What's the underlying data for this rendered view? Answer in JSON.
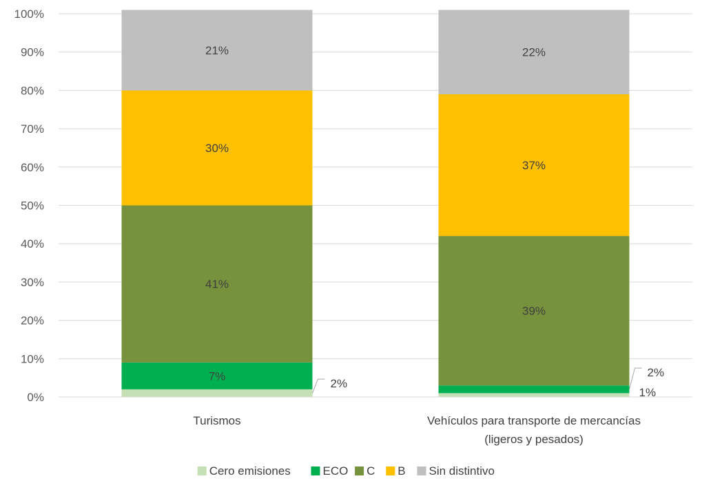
{
  "chart_data": {
    "type": "bar",
    "stacked": true,
    "percent_stacked": true,
    "title": "",
    "xlabel": "",
    "ylabel": "",
    "ylim": [
      0,
      100
    ],
    "yticks": [
      "0%",
      "10%",
      "20%",
      "30%",
      "40%",
      "50%",
      "60%",
      "70%",
      "80%",
      "90%",
      "100%"
    ],
    "grid": true,
    "legend": "bottom",
    "categories": [
      [
        "Turismos"
      ],
      [
        "Vehículos para transporte de mercancías",
        "(ligeros y pesados)"
      ]
    ],
    "series": [
      {
        "name": "Cero emisiones",
        "color": "#c5e0b4",
        "values": [
          2,
          1
        ],
        "labels": [
          "2%",
          "1%"
        ]
      },
      {
        "name": "ECO",
        "color": "#00b050",
        "values": [
          7,
          2
        ],
        "labels": [
          "7%",
          "2%"
        ]
      },
      {
        "name": "C",
        "color": "#76923c",
        "values": [
          41,
          39
        ],
        "labels": [
          "41%",
          "39%"
        ]
      },
      {
        "name": "B",
        "color": "#ffc000",
        "values": [
          30,
          37
        ],
        "labels": [
          "30%",
          "37%"
        ]
      },
      {
        "name": "Sin distintivo",
        "color": "#bfbfbf",
        "values": [
          21,
          22
        ],
        "labels": [
          "21%",
          "22%"
        ]
      }
    ]
  }
}
